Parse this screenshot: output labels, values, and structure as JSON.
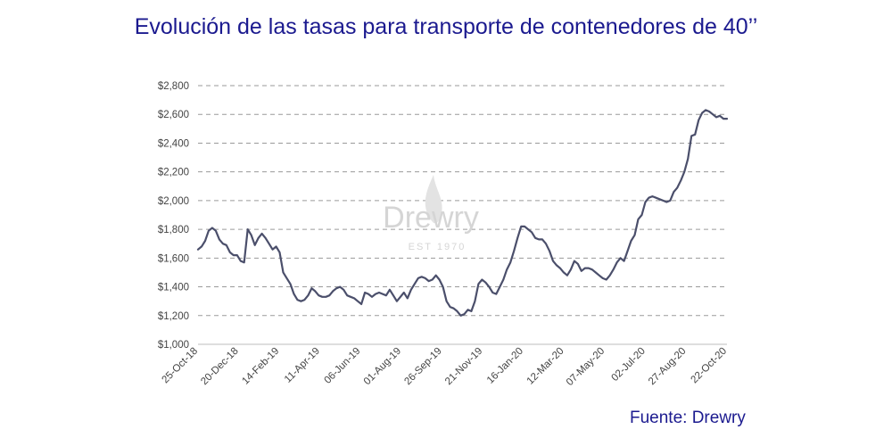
{
  "chart_data": {
    "type": "line",
    "title": "Evolución de las tasas para transporte de contenedores de 40’’",
    "source": "Fuente: Drewry",
    "watermark": {
      "main": "Drewry",
      "sub": "EST 1970"
    },
    "xlabel": "",
    "ylabel": "",
    "ylim": [
      1000,
      2800
    ],
    "yticks": [
      1000,
      1200,
      1400,
      1600,
      1800,
      2000,
      2200,
      2400,
      2600,
      2800
    ],
    "ytick_labels": [
      "$1,000",
      "$1,200",
      "$1,400",
      "$1,600",
      "$1,800",
      "$2,000",
      "$2,200",
      "$2,400",
      "$2,600",
      "$2,800"
    ],
    "grid": true,
    "line_color": "#4b4f6b",
    "x_tick_labels": [
      "25-Oct-18",
      "20-Dec-18",
      "14-Feb-19",
      "11-Apr-19",
      "06-Jun-19",
      "01-Aug-19",
      "26-Sep-19",
      "21-Nov-19",
      "16-Jan-20",
      "12-Mar-20",
      "07-May-20",
      "02-Jul-20",
      "27-Aug-20",
      "22-Oct-20"
    ],
    "series": [
      {
        "values": [
          1660,
          1680,
          1720,
          1790,
          1810,
          1790,
          1730,
          1700,
          1690,
          1640,
          1620,
          1620,
          1580,
          1570,
          1800,
          1760,
          1690,
          1740,
          1770,
          1740,
          1700,
          1660,
          1680,
          1640,
          1500,
          1460,
          1420,
          1350,
          1310,
          1300,
          1310,
          1340,
          1390,
          1370,
          1340,
          1330,
          1330,
          1340,
          1370,
          1390,
          1400,
          1380,
          1340,
          1330,
          1320,
          1300,
          1280,
          1360,
          1350,
          1330,
          1350,
          1360,
          1350,
          1340,
          1380,
          1340,
          1300,
          1330,
          1360,
          1320,
          1380,
          1420,
          1460,
          1470,
          1460,
          1440,
          1450,
          1480,
          1450,
          1400,
          1300,
          1260,
          1250,
          1230,
          1200,
          1210,
          1240,
          1230,
          1300,
          1420,
          1450,
          1430,
          1400,
          1360,
          1350,
          1400,
          1450,
          1520,
          1570,
          1650,
          1740,
          1820,
          1820,
          1800,
          1780,
          1740,
          1730,
          1730,
          1700,
          1650,
          1580,
          1550,
          1530,
          1500,
          1480,
          1520,
          1580,
          1560,
          1510,
          1530,
          1530,
          1520,
          1500,
          1480,
          1460,
          1450,
          1480,
          1520,
          1570,
          1600,
          1580,
          1650,
          1720,
          1760,
          1870,
          1900,
          1990,
          2020,
          2030,
          2020,
          2010,
          2000,
          1990,
          2000,
          2060,
          2090,
          2140,
          2200,
          2290,
          2450,
          2460,
          2560,
          2610,
          2630,
          2620,
          2600,
          2580,
          2590,
          2570,
          2570
        ]
      }
    ]
  }
}
